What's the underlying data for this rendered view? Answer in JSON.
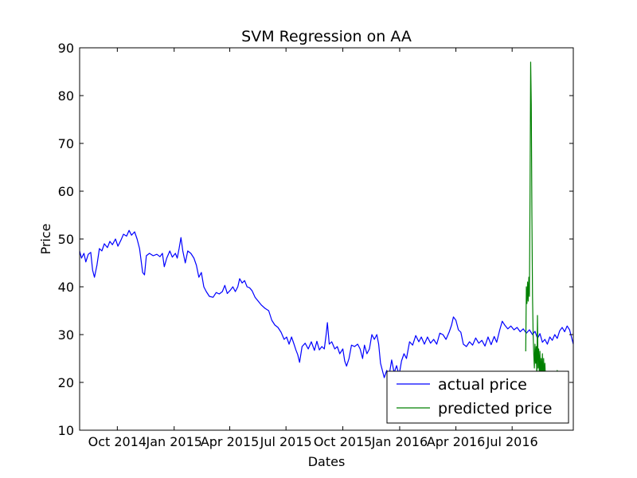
{
  "chart_data": {
    "type": "line",
    "title": "SVM Regression on AA",
    "xlabel": "Dates",
    "ylabel": "Price",
    "ylim": [
      10,
      90
    ],
    "xlim": [
      "2014-08-01",
      "2016-10-08"
    ],
    "yticks": [
      10,
      20,
      30,
      40,
      50,
      60,
      70,
      80,
      90
    ],
    "xticks": [
      {
        "date": "2014-10-01",
        "label": "Oct 2014"
      },
      {
        "date": "2015-01-01",
        "label": "Jan 2015"
      },
      {
        "date": "2015-04-01",
        "label": "Apr 2015"
      },
      {
        "date": "2015-07-01",
        "label": "Jul 2015"
      },
      {
        "date": "2015-10-01",
        "label": "Oct 2015"
      },
      {
        "date": "2016-01-01",
        "label": "Jan 2016"
      },
      {
        "date": "2016-04-01",
        "label": "Apr 2016"
      },
      {
        "date": "2016-07-01",
        "label": "Jul 2016"
      }
    ],
    "grid": false,
    "legend_position": "bottom-right",
    "series": [
      {
        "name": "actual price",
        "color": "#0000ff",
        "points": [
          [
            "2014-08-01",
            47.5
          ],
          [
            "2014-08-04",
            46.0
          ],
          [
            "2014-08-08",
            47.0
          ],
          [
            "2014-08-11",
            45.2
          ],
          [
            "2014-08-15",
            46.8
          ],
          [
            "2014-08-19",
            47.2
          ],
          [
            "2014-08-22",
            43.5
          ],
          [
            "2014-08-25",
            42.0
          ],
          [
            "2014-08-29",
            44.5
          ],
          [
            "2014-09-02",
            48.0
          ],
          [
            "2014-09-06",
            47.5
          ],
          [
            "2014-09-10",
            49.0
          ],
          [
            "2014-09-15",
            48.2
          ],
          [
            "2014-09-19",
            49.5
          ],
          [
            "2014-09-23",
            48.8
          ],
          [
            "2014-09-28",
            50.0
          ],
          [
            "2014-10-02",
            48.5
          ],
          [
            "2014-10-07",
            49.8
          ],
          [
            "2014-10-11",
            51.0
          ],
          [
            "2014-10-16",
            50.6
          ],
          [
            "2014-10-20",
            51.8
          ],
          [
            "2014-10-24",
            50.8
          ],
          [
            "2014-10-29",
            51.5
          ],
          [
            "2014-11-02",
            50.0
          ],
          [
            "2014-11-06",
            48.0
          ],
          [
            "2014-11-09",
            45.0
          ],
          [
            "2014-11-11",
            43.0
          ],
          [
            "2014-11-14",
            42.5
          ],
          [
            "2014-11-17",
            46.5
          ],
          [
            "2014-11-22",
            47.0
          ],
          [
            "2014-11-28",
            46.5
          ],
          [
            "2014-12-04",
            46.8
          ],
          [
            "2014-12-09",
            46.3
          ],
          [
            "2014-12-13",
            47.0
          ],
          [
            "2014-12-16",
            44.2
          ],
          [
            "2014-12-20",
            46.0
          ],
          [
            "2014-12-25",
            47.5
          ],
          [
            "2014-12-29",
            46.2
          ],
          [
            "2015-01-03",
            47.0
          ],
          [
            "2015-01-06",
            46.0
          ],
          [
            "2015-01-09",
            48.0
          ],
          [
            "2015-01-12",
            50.3
          ],
          [
            "2015-01-15",
            47.5
          ],
          [
            "2015-01-19",
            45.0
          ],
          [
            "2015-01-23",
            47.5
          ],
          [
            "2015-01-28",
            47.0
          ],
          [
            "2015-02-02",
            46.0
          ],
          [
            "2015-02-06",
            44.5
          ],
          [
            "2015-02-10",
            42.0
          ],
          [
            "2015-02-14",
            43.0
          ],
          [
            "2015-02-18",
            40.0
          ],
          [
            "2015-02-22",
            39.0
          ],
          [
            "2015-02-27",
            38.0
          ],
          [
            "2015-03-05",
            37.8
          ],
          [
            "2015-03-10",
            38.8
          ],
          [
            "2015-03-15",
            38.5
          ],
          [
            "2015-03-20",
            39.0
          ],
          [
            "2015-03-24",
            40.3
          ],
          [
            "2015-03-28",
            38.6
          ],
          [
            "2015-04-02",
            39.3
          ],
          [
            "2015-04-06",
            40.0
          ],
          [
            "2015-04-10",
            39.0
          ],
          [
            "2015-04-14",
            40.0
          ],
          [
            "2015-04-17",
            41.7
          ],
          [
            "2015-04-21",
            40.8
          ],
          [
            "2015-04-25",
            41.3
          ],
          [
            "2015-04-29",
            40.0
          ],
          [
            "2015-05-03",
            39.8
          ],
          [
            "2015-05-07",
            39.2
          ],
          [
            "2015-05-12",
            37.8
          ],
          [
            "2015-05-17",
            37.0
          ],
          [
            "2015-05-22",
            36.2
          ],
          [
            "2015-05-28",
            35.5
          ],
          [
            "2015-06-03",
            35.0
          ],
          [
            "2015-06-08",
            33.0
          ],
          [
            "2015-06-13",
            32.0
          ],
          [
            "2015-06-18",
            31.5
          ],
          [
            "2015-06-23",
            30.5
          ],
          [
            "2015-06-28",
            29.0
          ],
          [
            "2015-07-02",
            29.5
          ],
          [
            "2015-07-06",
            28.0
          ],
          [
            "2015-07-10",
            29.5
          ],
          [
            "2015-07-14",
            28.0
          ],
          [
            "2015-07-17",
            26.8
          ],
          [
            "2015-07-20",
            25.8
          ],
          [
            "2015-07-23",
            24.2
          ],
          [
            "2015-07-27",
            27.5
          ],
          [
            "2015-08-01",
            28.2
          ],
          [
            "2015-08-06",
            27.0
          ],
          [
            "2015-08-11",
            28.5
          ],
          [
            "2015-08-16",
            26.7
          ],
          [
            "2015-08-20",
            28.6
          ],
          [
            "2015-08-24",
            26.8
          ],
          [
            "2015-08-28",
            27.5
          ],
          [
            "2015-09-01",
            27.0
          ],
          [
            "2015-09-04",
            30.0
          ],
          [
            "2015-09-06",
            32.5
          ],
          [
            "2015-09-09",
            28.0
          ],
          [
            "2015-09-13",
            28.5
          ],
          [
            "2015-09-18",
            27.0
          ],
          [
            "2015-09-22",
            27.5
          ],
          [
            "2015-09-26",
            26.0
          ],
          [
            "2015-10-01",
            27.0
          ],
          [
            "2015-10-04",
            24.5
          ],
          [
            "2015-10-07",
            23.4
          ],
          [
            "2015-10-11",
            25.0
          ],
          [
            "2015-10-15",
            27.8
          ],
          [
            "2015-10-20",
            27.5
          ],
          [
            "2015-10-25",
            28.0
          ],
          [
            "2015-10-29",
            27.0
          ],
          [
            "2015-11-02",
            25.0
          ],
          [
            "2015-11-05",
            27.8
          ],
          [
            "2015-11-09",
            26.0
          ],
          [
            "2015-11-13",
            27.0
          ],
          [
            "2015-11-17",
            30.0
          ],
          [
            "2015-11-21",
            29.0
          ],
          [
            "2015-11-25",
            30.0
          ],
          [
            "2015-11-28",
            28.0
          ],
          [
            "2015-12-01",
            24.0
          ],
          [
            "2015-12-04",
            22.5
          ],
          [
            "2015-12-07",
            21.0
          ],
          [
            "2015-12-11",
            22.5
          ],
          [
            "2015-12-15",
            21.5
          ],
          [
            "2015-12-19",
            24.7
          ],
          [
            "2015-12-23",
            22.0
          ],
          [
            "2015-12-27",
            23.5
          ],
          [
            "2015-12-31",
            21.5
          ],
          [
            "2016-01-04",
            24.5
          ],
          [
            "2016-01-08",
            26.0
          ],
          [
            "2016-01-12",
            25.0
          ],
          [
            "2016-01-17",
            28.5
          ],
          [
            "2016-01-22",
            27.8
          ],
          [
            "2016-01-27",
            29.8
          ],
          [
            "2016-02-01",
            28.5
          ],
          [
            "2016-02-05",
            29.5
          ],
          [
            "2016-02-10",
            28.0
          ],
          [
            "2016-02-15",
            29.5
          ],
          [
            "2016-02-20",
            28.2
          ],
          [
            "2016-02-25",
            29.0
          ],
          [
            "2016-03-01",
            28.0
          ],
          [
            "2016-03-06",
            30.3
          ],
          [
            "2016-03-11",
            30.0
          ],
          [
            "2016-03-16",
            29.0
          ],
          [
            "2016-03-21",
            30.5
          ],
          [
            "2016-03-25",
            32.0
          ],
          [
            "2016-03-28",
            33.7
          ],
          [
            "2016-04-01",
            33.0
          ],
          [
            "2016-04-05",
            31.0
          ],
          [
            "2016-04-09",
            30.5
          ],
          [
            "2016-04-13",
            28.0
          ],
          [
            "2016-04-18",
            27.5
          ],
          [
            "2016-04-23",
            28.5
          ],
          [
            "2016-04-28",
            27.8
          ],
          [
            "2016-05-03",
            29.3
          ],
          [
            "2016-05-08",
            28.2
          ],
          [
            "2016-05-13",
            28.8
          ],
          [
            "2016-05-18",
            27.6
          ],
          [
            "2016-05-23",
            29.5
          ],
          [
            "2016-05-28",
            27.9
          ],
          [
            "2016-06-02",
            29.6
          ],
          [
            "2016-06-06",
            28.4
          ],
          [
            "2016-06-11",
            31.0
          ],
          [
            "2016-06-15",
            32.8
          ],
          [
            "2016-06-19",
            32.0
          ],
          [
            "2016-06-24",
            31.2
          ],
          [
            "2016-06-29",
            31.8
          ],
          [
            "2016-07-04",
            31.0
          ],
          [
            "2016-07-09",
            31.5
          ],
          [
            "2016-07-14",
            30.6
          ],
          [
            "2016-07-19",
            31.2
          ],
          [
            "2016-07-24",
            30.3
          ],
          [
            "2016-07-29",
            31.0
          ],
          [
            "2016-08-03",
            30.0
          ],
          [
            "2016-08-07",
            30.7
          ],
          [
            "2016-08-11",
            29.2
          ],
          [
            "2016-08-15",
            30.2
          ],
          [
            "2016-08-19",
            28.4
          ],
          [
            "2016-08-23",
            29.0
          ],
          [
            "2016-08-27",
            28.0
          ],
          [
            "2016-08-31",
            29.5
          ],
          [
            "2016-09-04",
            28.8
          ],
          [
            "2016-09-08",
            30.0
          ],
          [
            "2016-09-12",
            29.2
          ],
          [
            "2016-09-16",
            30.8
          ],
          [
            "2016-09-20",
            31.5
          ],
          [
            "2016-09-24",
            30.6
          ],
          [
            "2016-09-28",
            31.8
          ],
          [
            "2016-10-02",
            31.0
          ],
          [
            "2016-10-05",
            29.5
          ],
          [
            "2016-10-08",
            28.0
          ]
        ]
      },
      {
        "name": "predicted price",
        "color": "#008000",
        "points": [
          [
            "2016-07-23",
            26.5
          ],
          [
            "2016-07-24",
            40.0
          ],
          [
            "2016-07-25",
            36.5
          ],
          [
            "2016-07-26",
            41.0
          ],
          [
            "2016-07-27",
            37.0
          ],
          [
            "2016-07-28",
            42.0
          ],
          [
            "2016-07-29",
            38.0
          ],
          [
            "2016-07-30",
            60.0
          ],
          [
            "2016-07-31",
            87.0
          ],
          [
            "2016-08-01",
            78.0
          ],
          [
            "2016-08-02",
            55.0
          ],
          [
            "2016-08-03",
            38.0
          ],
          [
            "2016-08-04",
            30.0
          ],
          [
            "2016-08-05",
            26.0
          ],
          [
            "2016-08-06",
            23.0
          ],
          [
            "2016-08-07",
            28.0
          ],
          [
            "2016-08-08",
            24.0
          ],
          [
            "2016-08-09",
            27.5
          ],
          [
            "2016-08-10",
            21.0
          ],
          [
            "2016-08-11",
            34.0
          ],
          [
            "2016-08-12",
            23.0
          ],
          [
            "2016-08-13",
            27.0
          ],
          [
            "2016-08-14",
            21.5
          ],
          [
            "2016-08-15",
            26.5
          ],
          [
            "2016-08-16",
            20.0
          ],
          [
            "2016-08-17",
            25.0
          ],
          [
            "2016-08-18",
            20.5
          ],
          [
            "2016-08-19",
            26.0
          ],
          [
            "2016-08-20",
            19.0
          ],
          [
            "2016-08-21",
            25.0
          ],
          [
            "2016-08-22",
            20.0
          ],
          [
            "2016-08-23",
            24.0
          ],
          [
            "2016-08-24",
            21.0
          ],
          [
            "2016-08-25",
            22.0
          ],
          [
            "2016-08-26",
            17.0
          ],
          [
            "2016-08-27",
            21.5
          ],
          [
            "2016-08-28",
            18.0
          ],
          [
            "2016-08-29",
            16.0
          ],
          [
            "2016-08-30",
            19.0
          ],
          [
            "2016-08-31",
            17.5
          ],
          [
            "2016-09-01",
            20.0
          ],
          [
            "2016-09-02",
            16.5
          ],
          [
            "2016-09-03",
            18.0
          ],
          [
            "2016-09-04",
            15.5
          ],
          [
            "2016-09-05",
            19.5
          ],
          [
            "2016-09-06",
            17.5
          ],
          [
            "2016-09-07",
            19.0
          ],
          [
            "2016-09-08",
            16.0
          ],
          [
            "2016-09-09",
            17.0
          ],
          [
            "2016-09-10",
            15.5
          ],
          [
            "2016-09-11",
            18.0
          ],
          [
            "2016-09-12",
            22.5
          ],
          [
            "2016-09-13",
            21.0
          ],
          [
            "2016-09-14",
            22.0
          ],
          [
            "2016-09-15",
            16.0
          ],
          [
            "2016-09-16",
            19.0
          ],
          [
            "2016-09-17",
            17.0
          ],
          [
            "2016-09-18",
            20.0
          ],
          [
            "2016-09-19",
            22.0
          ],
          [
            "2016-09-20",
            14.0
          ],
          [
            "2016-09-21",
            18.0
          ],
          [
            "2016-09-22",
            21.5
          ],
          [
            "2016-09-23",
            20.0
          ],
          [
            "2016-09-24",
            15.5
          ],
          [
            "2016-09-25",
            21.0
          ],
          [
            "2016-09-26",
            16.0
          ],
          [
            "2016-09-27",
            20.5
          ],
          [
            "2016-09-28",
            14.5
          ],
          [
            "2016-09-29",
            17.5
          ],
          [
            "2016-09-30",
            15.0
          ]
        ]
      }
    ]
  }
}
